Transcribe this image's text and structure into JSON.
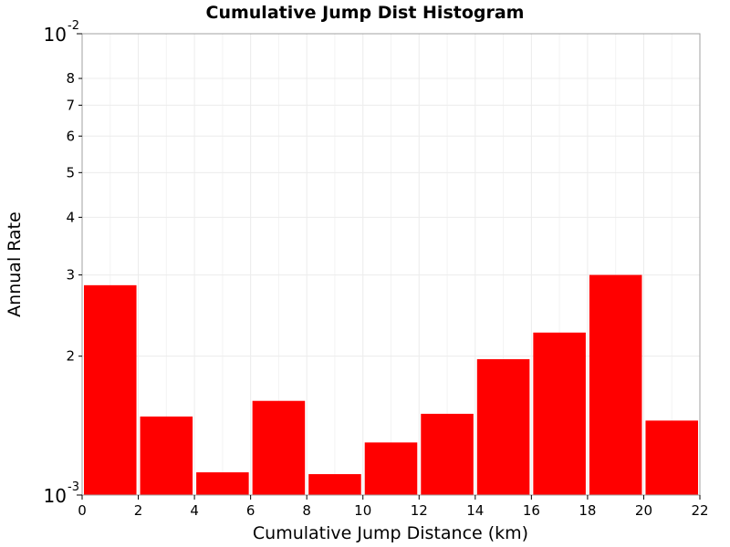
{
  "chart_data": {
    "type": "bar",
    "title": "Cumulative Jump Dist Histogram",
    "xlabel": "Cumulative Jump Distance (km)",
    "ylabel": "Annual Rate",
    "x_scale": "linear",
    "y_scale": "log",
    "xlim": [
      0,
      22
    ],
    "ylim": [
      0.001,
      0.01
    ],
    "grid": true,
    "bar_color": "#ff0000",
    "bar_width": 2,
    "bins": [
      {
        "x0": 0,
        "x1": 2,
        "value": 0.00285
      },
      {
        "x0": 2,
        "x1": 4,
        "value": 0.00148
      },
      {
        "x0": 4,
        "x1": 6,
        "value": 0.00112
      },
      {
        "x0": 6,
        "x1": 8,
        "value": 0.0016
      },
      {
        "x0": 8,
        "x1": 10,
        "value": 0.00111
      },
      {
        "x0": 10,
        "x1": 12,
        "value": 0.0013
      },
      {
        "x0": 12,
        "x1": 14,
        "value": 0.0015
      },
      {
        "x0": 14,
        "x1": 16,
        "value": 0.00197
      },
      {
        "x0": 16,
        "x1": 18,
        "value": 0.00225
      },
      {
        "x0": 18,
        "x1": 20,
        "value": 0.003
      },
      {
        "x0": 20,
        "x1": 22,
        "value": 0.00145
      }
    ],
    "x_ticks": [
      "0",
      "2",
      "4",
      "6",
      "8",
      "10",
      "12",
      "14",
      "16",
      "18",
      "20",
      "22"
    ],
    "y_major_ticks": [
      {
        "value": 0.001,
        "base": "10",
        "exponent": "-3"
      },
      {
        "value": 0.01,
        "base": "10",
        "exponent": "-2"
      }
    ],
    "y_minor_ticks": [
      {
        "value": 0.002,
        "label": "2"
      },
      {
        "value": 0.003,
        "label": "3"
      },
      {
        "value": 0.004,
        "label": "4"
      },
      {
        "value": 0.005,
        "label": "5"
      },
      {
        "value": 0.006,
        "label": "6"
      },
      {
        "value": 0.007,
        "label": "7"
      },
      {
        "value": 0.008,
        "label": "8"
      }
    ]
  }
}
